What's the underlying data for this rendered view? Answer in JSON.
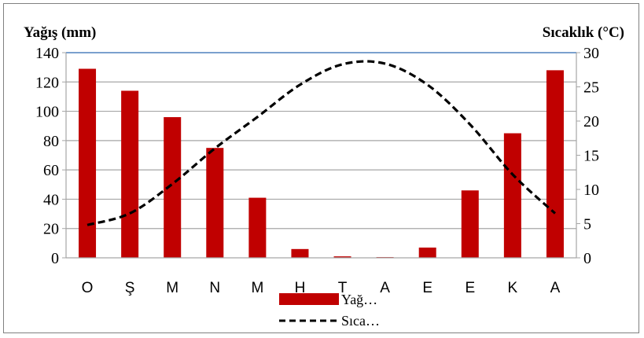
{
  "chart_data": {
    "type": "bar",
    "categories": [
      "O",
      "Ş",
      "M",
      "N",
      "M",
      "H",
      "T",
      "A",
      "E",
      "E",
      "K",
      "A"
    ],
    "series": [
      {
        "name": "Yağ…",
        "type": "bar",
        "axis": "left",
        "color": "#c00000",
        "values": [
          129,
          114,
          96,
          75,
          41,
          6,
          1,
          0.5,
          7,
          46,
          85,
          128
        ]
      },
      {
        "name": "Sıca…",
        "type": "line",
        "axis": "right",
        "color": "#000000",
        "line_style": "dashed",
        "values": [
          4.8,
          6.5,
          10.8,
          16,
          20.6,
          25.3,
          28.3,
          28.4,
          25.3,
          19.5,
          12.2,
          6.5
        ]
      }
    ],
    "y_left": {
      "label": "Yağış (mm)",
      "ylim": [
        0,
        140
      ],
      "ticks": [
        0,
        20,
        40,
        60,
        80,
        100,
        120,
        140
      ]
    },
    "y_right": {
      "label": "Sıcaklık (°C)",
      "ylim": [
        0,
        30
      ],
      "ticks": [
        0,
        5,
        10,
        15,
        20,
        25,
        30
      ]
    },
    "grid": true,
    "legend_position": "bottom-center"
  }
}
